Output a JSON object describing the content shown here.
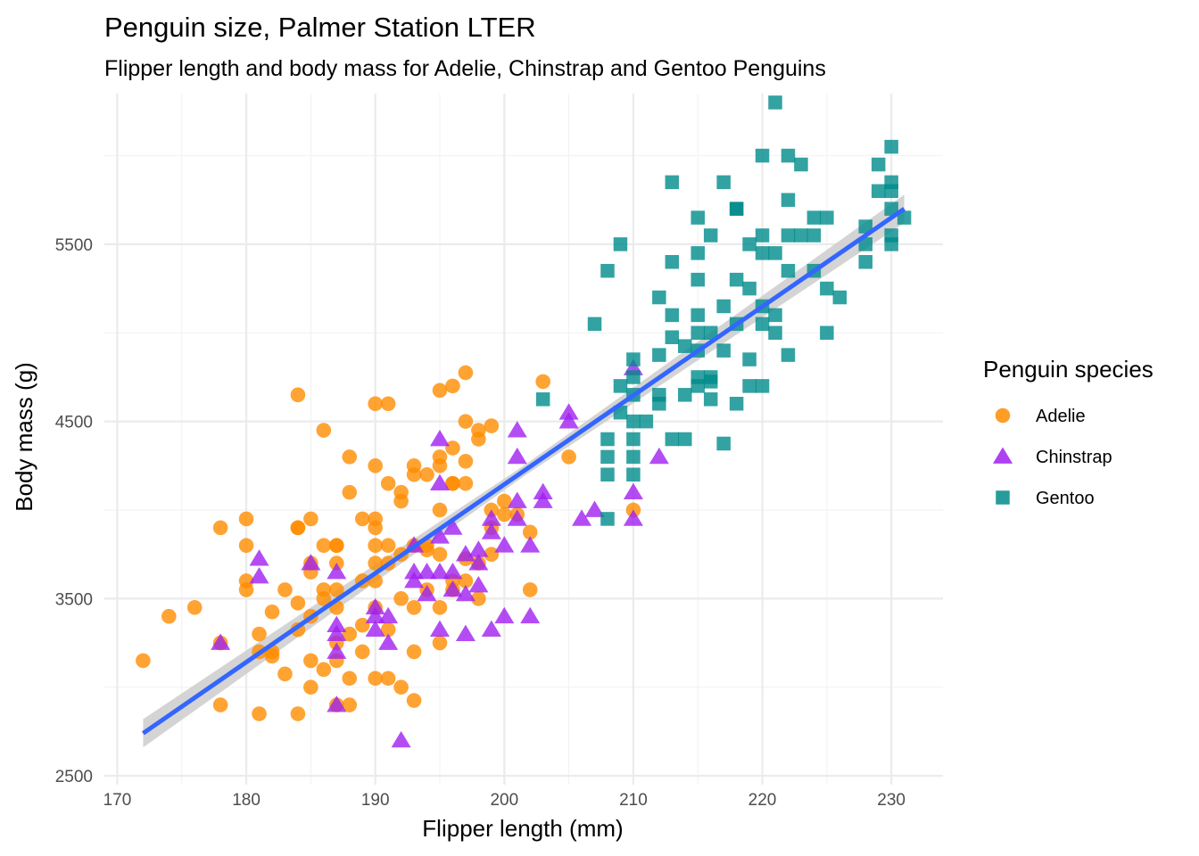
{
  "chart_data": {
    "type": "scatter",
    "title": "Penguin size, Palmer Station LTER",
    "subtitle": "Flipper length and body mass for Adelie, Chinstrap and Gentoo Penguins",
    "xlabel": "Flipper length (mm)",
    "ylabel": "Body mass (g)",
    "xlim": [
      169,
      234
    ],
    "ylim": [
      2450,
      6350
    ],
    "x_ticks": [
      170,
      180,
      190,
      200,
      210,
      220,
      230
    ],
    "y_ticks": [
      2500,
      3500,
      4500,
      5500
    ],
    "x_tick_labels": [
      "170",
      "180",
      "190",
      "200",
      "210",
      "220",
      "230"
    ],
    "y_tick_labels": [
      "2500",
      "3500",
      "4500",
      "5500"
    ],
    "grid": true,
    "legend": {
      "title": "Penguin species",
      "position": "right"
    },
    "trend": {
      "type": "linear regression with confidence band",
      "color": "#3366ff",
      "band_color": "#cccccc",
      "start": [
        172,
        2740
      ],
      "end": [
        231,
        5700
      ],
      "band_half_width_ends": 80,
      "band_half_width_center": 30
    },
    "series": [
      {
        "name": "Adelie",
        "marker": "circle",
        "color": "#ff8c00",
        "points": [
          [
            172,
            3150
          ],
          [
            174,
            3400
          ],
          [
            176,
            3450
          ],
          [
            178,
            3900
          ],
          [
            178,
            3250
          ],
          [
            178,
            2900
          ],
          [
            180,
            3950
          ],
          [
            180,
            3800
          ],
          [
            180,
            3600
          ],
          [
            180,
            3550
          ],
          [
            181,
            3300
          ],
          [
            181,
            3200
          ],
          [
            181,
            2850
          ],
          [
            182,
            3175
          ],
          [
            182,
            3200
          ],
          [
            182,
            3425
          ],
          [
            183,
            3075
          ],
          [
            183,
            3550
          ],
          [
            184,
            4650
          ],
          [
            184,
            3900
          ],
          [
            184,
            3900
          ],
          [
            184,
            3325
          ],
          [
            184,
            3475
          ],
          [
            184,
            2850
          ],
          [
            185,
            3950
          ],
          [
            185,
            3700
          ],
          [
            185,
            3650
          ],
          [
            185,
            3400
          ],
          [
            185,
            3150
          ],
          [
            185,
            3000
          ],
          [
            186,
            4450
          ],
          [
            186,
            3800
          ],
          [
            186,
            3550
          ],
          [
            186,
            3500
          ],
          [
            186,
            3100
          ],
          [
            187,
            3800
          ],
          [
            187,
            3800
          ],
          [
            187,
            3700
          ],
          [
            187,
            3550
          ],
          [
            187,
            3450
          ],
          [
            187,
            3250
          ],
          [
            187,
            3150
          ],
          [
            187,
            2900
          ],
          [
            188,
            4300
          ],
          [
            188,
            4100
          ],
          [
            188,
            3300
          ],
          [
            188,
            3050
          ],
          [
            188,
            2900
          ],
          [
            189,
            3950
          ],
          [
            189,
            3600
          ],
          [
            189,
            3350
          ],
          [
            189,
            3200
          ],
          [
            190,
            4600
          ],
          [
            190,
            4250
          ],
          [
            190,
            3950
          ],
          [
            190,
            3900
          ],
          [
            190,
            3800
          ],
          [
            190,
            3700
          ],
          [
            190,
            3600
          ],
          [
            190,
            3450
          ],
          [
            190,
            3050
          ],
          [
            191,
            4600
          ],
          [
            191,
            4150
          ],
          [
            191,
            3800
          ],
          [
            191,
            3700
          ],
          [
            191,
            3325
          ],
          [
            191,
            3050
          ],
          [
            192,
            4100
          ],
          [
            192,
            4050
          ],
          [
            192,
            3750
          ],
          [
            192,
            3500
          ],
          [
            192,
            3000
          ],
          [
            193,
            4250
          ],
          [
            193,
            4200
          ],
          [
            193,
            3800
          ],
          [
            193,
            3450
          ],
          [
            193,
            3200
          ],
          [
            193,
            2925
          ],
          [
            194,
            4200
          ],
          [
            194,
            3800
          ],
          [
            194,
            3775
          ],
          [
            194,
            3550
          ],
          [
            195,
            4675
          ],
          [
            195,
            4300
          ],
          [
            195,
            4250
          ],
          [
            195,
            4000
          ],
          [
            195,
            3750
          ],
          [
            195,
            3450
          ],
          [
            195,
            3250
          ],
          [
            196,
            4700
          ],
          [
            196,
            4350
          ],
          [
            196,
            4150
          ],
          [
            196,
            4150
          ],
          [
            196,
            3600
          ],
          [
            196,
            3550
          ],
          [
            197,
            4775
          ],
          [
            197,
            4500
          ],
          [
            197,
            4275
          ],
          [
            197,
            4150
          ],
          [
            197,
            3725
          ],
          [
            197,
            3600
          ],
          [
            198,
            4450
          ],
          [
            198,
            4400
          ],
          [
            198,
            3700
          ],
          [
            198,
            3500
          ],
          [
            199,
            4475
          ],
          [
            199,
            3900
          ],
          [
            199,
            4000
          ],
          [
            199,
            3750
          ],
          [
            200,
            4050
          ],
          [
            200,
            3975
          ],
          [
            201,
            3975
          ],
          [
            202,
            3875
          ],
          [
            202,
            3550
          ],
          [
            203,
            4725
          ],
          [
            205,
            4300
          ],
          [
            210,
            4000
          ]
        ]
      },
      {
        "name": "Chinstrap",
        "marker": "triangle",
        "color": "#a020f0",
        "points": [
          [
            178,
            3250
          ],
          [
            181,
            3725
          ],
          [
            181,
            3625
          ],
          [
            185,
            3700
          ],
          [
            187,
            3650
          ],
          [
            187,
            3350
          ],
          [
            187,
            3300
          ],
          [
            187,
            3200
          ],
          [
            187,
            2900
          ],
          [
            190,
            3450
          ],
          [
            190,
            3400
          ],
          [
            190,
            3325
          ],
          [
            191,
            3400
          ],
          [
            191,
            3250
          ],
          [
            192,
            2700
          ],
          [
            193,
            3800
          ],
          [
            193,
            3650
          ],
          [
            193,
            3600
          ],
          [
            194,
            3650
          ],
          [
            194,
            3525
          ],
          [
            195,
            4400
          ],
          [
            195,
            4150
          ],
          [
            195,
            3850
          ],
          [
            195,
            3650
          ],
          [
            195,
            3325
          ],
          [
            196,
            3900
          ],
          [
            196,
            3650
          ],
          [
            196,
            3550
          ],
          [
            197,
            3750
          ],
          [
            197,
            3525
          ],
          [
            197,
            3300
          ],
          [
            198,
            3775
          ],
          [
            198,
            3700
          ],
          [
            198,
            3575
          ],
          [
            199,
            3950
          ],
          [
            199,
            3875
          ],
          [
            199,
            3325
          ],
          [
            200,
            3800
          ],
          [
            200,
            3400
          ],
          [
            201,
            4450
          ],
          [
            201,
            4300
          ],
          [
            201,
            4050
          ],
          [
            201,
            3950
          ],
          [
            202,
            3800
          ],
          [
            202,
            3400
          ],
          [
            203,
            4100
          ],
          [
            203,
            4050
          ],
          [
            205,
            4550
          ],
          [
            205,
            4500
          ],
          [
            206,
            3950
          ],
          [
            207,
            4000
          ],
          [
            210,
            4800
          ],
          [
            210,
            4100
          ],
          [
            210,
            3950
          ],
          [
            212,
            4300
          ]
        ]
      },
      {
        "name": "Gentoo",
        "marker": "square",
        "color": "#008b8b",
        "points": [
          [
            203,
            4625
          ],
          [
            207,
            5050
          ],
          [
            208,
            5350
          ],
          [
            208,
            4400
          ],
          [
            208,
            4300
          ],
          [
            208,
            4200
          ],
          [
            208,
            3950
          ],
          [
            209,
            5500
          ],
          [
            209,
            4700
          ],
          [
            209,
            4550
          ],
          [
            210,
            4850
          ],
          [
            210,
            4750
          ],
          [
            210,
            4650
          ],
          [
            210,
            4500
          ],
          [
            210,
            4400
          ],
          [
            210,
            4300
          ],
          [
            210,
            4200
          ],
          [
            211,
            4500
          ],
          [
            212,
            5200
          ],
          [
            212,
            4875
          ],
          [
            212,
            4650
          ],
          [
            212,
            4600
          ],
          [
            213,
            5850
          ],
          [
            213,
            5400
          ],
          [
            213,
            5100
          ],
          [
            213,
            4975
          ],
          [
            213,
            4400
          ],
          [
            214,
            4925
          ],
          [
            214,
            4650
          ],
          [
            214,
            4400
          ],
          [
            215,
            5650
          ],
          [
            215,
            5450
          ],
          [
            215,
            5300
          ],
          [
            215,
            5100
          ],
          [
            215,
            5000
          ],
          [
            215,
            4900
          ],
          [
            215,
            4700
          ],
          [
            215,
            4750
          ],
          [
            216,
            5550
          ],
          [
            216,
            5000
          ],
          [
            216,
            4750
          ],
          [
            216,
            4725
          ],
          [
            216,
            4625
          ],
          [
            217,
            5850
          ],
          [
            217,
            5150
          ],
          [
            217,
            4900
          ],
          [
            217,
            4375
          ],
          [
            218,
            5700
          ],
          [
            218,
            5700
          ],
          [
            218,
            5300
          ],
          [
            218,
            5050
          ],
          [
            218,
            4600
          ],
          [
            219,
            5500
          ],
          [
            219,
            5250
          ],
          [
            219,
            4850
          ],
          [
            219,
            4700
          ],
          [
            220,
            6000
          ],
          [
            220,
            5550
          ],
          [
            220,
            5450
          ],
          [
            220,
            5150
          ],
          [
            220,
            5050
          ],
          [
            220,
            4700
          ],
          [
            221,
            6300
          ],
          [
            221,
            5450
          ],
          [
            221,
            5100
          ],
          [
            221,
            5000
          ],
          [
            222,
            6000
          ],
          [
            222,
            5750
          ],
          [
            222,
            5550
          ],
          [
            222,
            5350
          ],
          [
            222,
            4875
          ],
          [
            223,
            5950
          ],
          [
            223,
            5550
          ],
          [
            224,
            5650
          ],
          [
            224,
            5550
          ],
          [
            224,
            5350
          ],
          [
            225,
            5650
          ],
          [
            225,
            5250
          ],
          [
            225,
            5000
          ],
          [
            226,
            5200
          ],
          [
            228,
            5600
          ],
          [
            228,
            5500
          ],
          [
            228,
            5400
          ],
          [
            229,
            5950
          ],
          [
            229,
            5800
          ],
          [
            230,
            6050
          ],
          [
            230,
            5850
          ],
          [
            230,
            5800
          ],
          [
            230,
            5700
          ],
          [
            230,
            5550
          ],
          [
            230,
            5500
          ],
          [
            231,
            5650
          ]
        ]
      }
    ]
  }
}
